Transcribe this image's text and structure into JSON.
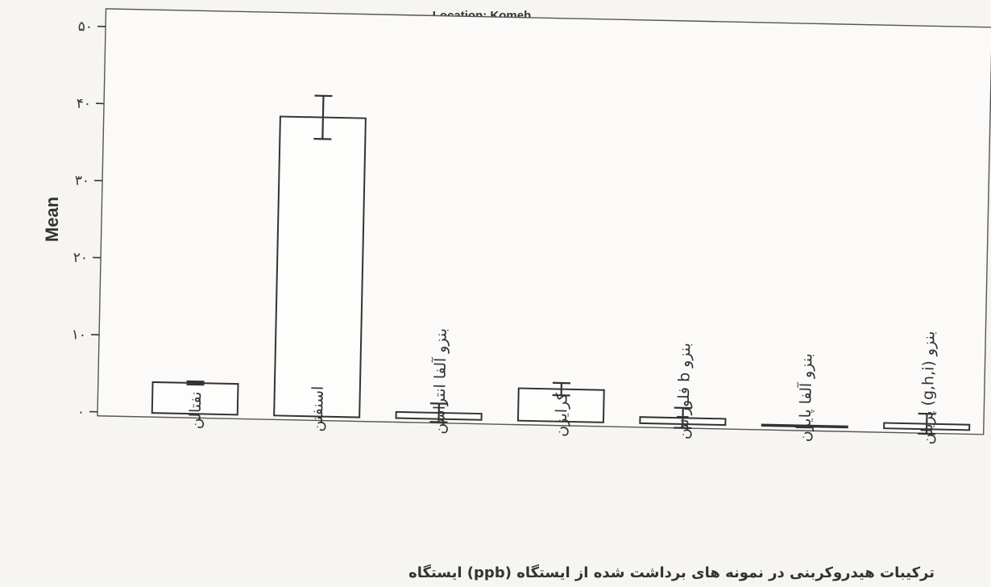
{
  "chart_data": {
    "type": "bar",
    "title": "Location: Komeh",
    "xlabel": "",
    "ylabel": "Mean",
    "ylim": [
      0,
      50
    ],
    "yticks": [
      0,
      10,
      20,
      30,
      40,
      50
    ],
    "ytick_labels": [
      "۰",
      "۱۰",
      "۲۰",
      "۳۰",
      "۴۰",
      "۵۰"
    ],
    "categories": [
      "نفتالن",
      "اسنفتن",
      "بنزو آلفا انتراسن",
      "کرایزن",
      "بنزو b فلورانتن",
      "بنزو آلفا پایرن",
      "بنزو (g,h,i) پریلن"
    ],
    "values": [
      4.0,
      38.8,
      0.8,
      4.2,
      0.8,
      0.0,
      0.7
    ],
    "errors": [
      0.2,
      2.8,
      1.2,
      0.8,
      1.3,
      0.1,
      1.3
    ],
    "grid": false
  },
  "caption": "ترکیبات هیدروکربنی در نمونه های برداشت شده از ایستگاه (ppb) ایستگاه"
}
